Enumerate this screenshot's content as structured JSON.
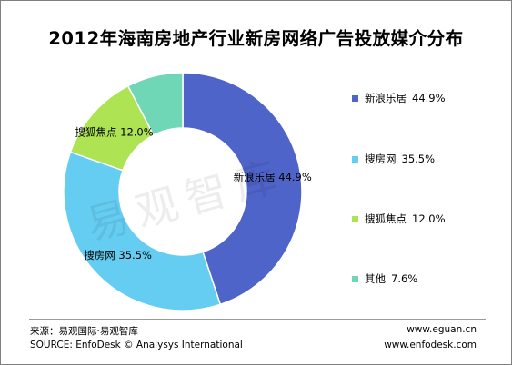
{
  "chart_data": {
    "type": "donut",
    "title": "2012年海南房地产行业新房网络广告投放媒介分布",
    "slices": [
      {
        "label": "新浪乐居",
        "value": 44.9,
        "display": "44.9%",
        "color": "#4F64C9"
      },
      {
        "label": "搜房网",
        "value": 35.5,
        "display": "35.5%",
        "color": "#66CDF2"
      },
      {
        "label": "搜狐焦点",
        "value": 12.0,
        "display": "12.0%",
        "color": "#AEE354"
      },
      {
        "label": "其他",
        "value": 7.6,
        "display": "7.6%",
        "color": "#6FD6B6"
      }
    ],
    "legend_position": "right"
  },
  "watermark": "易观智库",
  "footer": {
    "source_cn": "来源：易观国际·易观智库",
    "source_en": "SOURCE:  EnfoDesk © Analysys International",
    "url1": "www.eguan.cn",
    "url2": "www.enfodesk.com"
  }
}
